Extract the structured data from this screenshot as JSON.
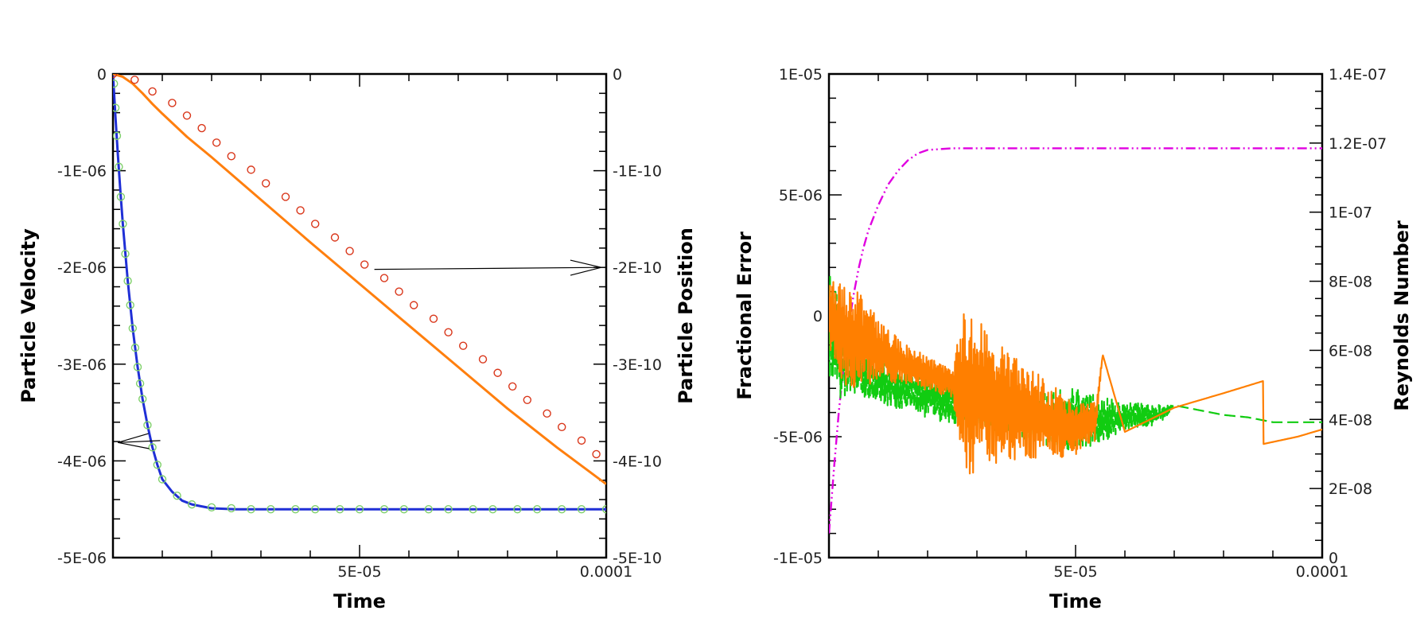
{
  "colors": {
    "velocity_line": "#1f2fd6",
    "velocity_markers": "#7fd06b",
    "position_line": "#ff7f0e",
    "position_markers": "#d9361a",
    "error_green": "#11cc11",
    "error_orange": "#ff7f00",
    "reynolds_line": "#e000e0",
    "axis": "#000000",
    "annotation_arrow": "#000000"
  },
  "chart_data": [
    {
      "type": "line",
      "xlabel": "Time",
      "ylabel": "Particle Velocity",
      "y2label": "Particle Position",
      "xlim": [
        0,
        0.0001
      ],
      "ylim": [
        -5e-06,
        0
      ],
      "y2lim": [
        -5e-10,
        0
      ],
      "x_tick_labels": [
        {
          "v": 5e-05,
          "label": "5E-05"
        },
        {
          "v": 0.0001,
          "label": "0.0001"
        }
      ],
      "y_tick_labels": [
        {
          "v": 0,
          "label": "0"
        },
        {
          "v": -1e-06,
          "label": "-1E-06"
        },
        {
          "v": -2e-06,
          "label": "-2E-06"
        },
        {
          "v": -3e-06,
          "label": "-3E-06"
        },
        {
          "v": -4e-06,
          "label": "-4E-06"
        },
        {
          "v": -5e-06,
          "label": "-5E-06"
        }
      ],
      "y2_tick_labels": [
        {
          "v": 0,
          "label": "0"
        },
        {
          "v": -1e-10,
          "label": "-1E-10"
        },
        {
          "v": -2e-10,
          "label": "-2E-10"
        },
        {
          "v": -3e-10,
          "label": "-3E-10"
        },
        {
          "v": -4e-10,
          "label": "-4E-10"
        },
        {
          "v": -5e-10,
          "label": "-5E-10"
        }
      ],
      "grid": false,
      "series": [
        {
          "axis": "left",
          "style": "solid",
          "color": "#1f2fd6",
          "x": [
            0,
            5e-07,
            1e-06,
            1.5e-06,
            2e-06,
            3e-06,
            4e-06,
            5e-06,
            6e-06,
            7e-06,
            8e-06,
            9e-06,
            1e-05,
            1.2e-05,
            1.4e-05,
            1.6e-05,
            1.8e-05,
            2e-05,
            2.5e-05,
            3e-05,
            3.5e-05,
            4e-05,
            5e-05,
            6e-05,
            7e-05,
            8e-05,
            9e-05,
            0.0001
          ],
          "y": [
            0,
            -4.4e-07,
            -8.4e-07,
            -1.21e-06,
            -1.55e-06,
            -2.14e-06,
            -2.63e-06,
            -3.03e-06,
            -3.36e-06,
            -3.63e-06,
            -3.86e-06,
            -4.04e-06,
            -4.19e-06,
            -4.32e-06,
            -4.41e-06,
            -4.45e-06,
            -4.47e-06,
            -4.49e-06,
            -4.5e-06,
            -4.5e-06,
            -4.5e-06,
            -4.5e-06,
            -4.5e-06,
            -4.5e-06,
            -4.5e-06,
            -4.5e-06,
            -4.5e-06,
            -4.5e-06
          ]
        },
        {
          "axis": "left",
          "style": "markers",
          "marker": "circle",
          "color": "#7fd06b",
          "x": [
            2e-07,
            5e-07,
            8e-07,
            1.2e-06,
            1.6e-06,
            2e-06,
            2.5e-06,
            3e-06,
            3.5e-06,
            4e-06,
            4.5e-06,
            5e-06,
            5.5e-06,
            6e-06,
            7e-06,
            8e-06,
            9e-06,
            1e-05,
            1.3e-05,
            1.6e-05,
            2e-05,
            2.4e-05,
            2.8e-05,
            3.2e-05,
            3.7e-05,
            4.1e-05,
            4.6e-05,
            5e-05,
            5.5e-05,
            5.9e-05,
            6.4e-05,
            6.8e-05,
            7.3e-05,
            7.7e-05,
            8.2e-05,
            8.6e-05,
            9.1e-05,
            9.5e-05,
            0.0001
          ],
          "y": [
            -1e-07,
            -3.5e-07,
            -6.4e-07,
            -9.6e-07,
            -1.27e-06,
            -1.55e-06,
            -1.86e-06,
            -2.14e-06,
            -2.39e-06,
            -2.63e-06,
            -2.83e-06,
            -3.03e-06,
            -3.2e-06,
            -3.36e-06,
            -3.63e-06,
            -3.86e-06,
            -4.04e-06,
            -4.19e-06,
            -4.36e-06,
            -4.45e-06,
            -4.48e-06,
            -4.49e-06,
            -4.5e-06,
            -4.5e-06,
            -4.5e-06,
            -4.5e-06,
            -4.5e-06,
            -4.5e-06,
            -4.5e-06,
            -4.5e-06,
            -4.5e-06,
            -4.5e-06,
            -4.5e-06,
            -4.5e-06,
            -4.5e-06,
            -4.5e-06,
            -4.5e-06,
            -4.5e-06,
            -4.5e-06
          ]
        },
        {
          "axis": "right",
          "style": "solid",
          "color": "#ff7f0e",
          "x": [
            0,
            2e-06,
            4e-06,
            6e-06,
            8e-06,
            1e-05,
            1.5e-05,
            2e-05,
            3e-05,
            4e-05,
            5e-05,
            6e-05,
            7e-05,
            8e-05,
            9e-05,
            0.0001
          ],
          "y": [
            0,
            -3e-12,
            -1e-11,
            -2e-11,
            -3.1e-11,
            -4.1e-11,
            -6.5e-11,
            -8.6e-11,
            -1.3e-10,
            -1.74e-10,
            -2.17e-10,
            -2.6e-10,
            -3.03e-10,
            -3.46e-10,
            -3.86e-10,
            -4.24e-10
          ]
        },
        {
          "axis": "right",
          "style": "markers",
          "marker": "circle",
          "color": "#d9361a",
          "x": [
            0,
            4.4e-06,
            8e-06,
            1.2e-05,
            1.5e-05,
            1.8e-05,
            2.1e-05,
            2.4e-05,
            2.8e-05,
            3.1e-05,
            3.5e-05,
            3.8e-05,
            4.1e-05,
            4.5e-05,
            4.8e-05,
            5.1e-05,
            5.5e-05,
            5.8e-05,
            6.1e-05,
            6.5e-05,
            6.8e-05,
            7.1e-05,
            7.5e-05,
            7.8e-05,
            8.1e-05,
            8.4e-05,
            8.8e-05,
            9.1e-05,
            9.5e-05,
            9.8e-05
          ],
          "y": [
            0,
            -6e-12,
            -1.8e-11,
            -3e-11,
            -4.3e-11,
            -5.6e-11,
            -7.1e-11,
            -8.5e-11,
            -9.9e-11,
            -1.13e-10,
            -1.27e-10,
            -1.41e-10,
            -1.55e-10,
            -1.69e-10,
            -1.83e-10,
            -1.97e-10,
            -2.11e-10,
            -2.25e-10,
            -2.39e-10,
            -2.53e-10,
            -2.67e-10,
            -2.81e-10,
            -2.95e-10,
            -3.09e-10,
            -3.23e-10,
            -3.37e-10,
            -3.51e-10,
            -3.65e-10,
            -3.79e-10,
            -3.93e-10
          ]
        }
      ],
      "annotations": [
        {
          "type": "arrow",
          "axis": "right",
          "from": [
            5.3e-05,
            -2.02e-10
          ],
          "to": [
            9.9e-05,
            -2e-10
          ]
        },
        {
          "type": "arrow",
          "axis": "left",
          "from": [
            9.6e-06,
            -3.79e-06
          ],
          "to": [
            1e-06,
            -3.81e-06
          ]
        }
      ]
    },
    {
      "type": "line",
      "xlabel": "Time",
      "ylabel": "Fractional Error",
      "y2label": "Reynolds Number",
      "xlim": [
        0,
        0.0001
      ],
      "ylim": [
        -1e-05,
        1e-05
      ],
      "y2lim": [
        0,
        1.4e-07
      ],
      "x_tick_labels": [
        {
          "v": 5e-05,
          "label": "5E-05"
        },
        {
          "v": 0.0001,
          "label": "0.0001"
        }
      ],
      "y_tick_labels": [
        {
          "v": 1e-05,
          "label": "1E-05"
        },
        {
          "v": 5e-06,
          "label": "5E-06"
        },
        {
          "v": 0,
          "label": "0"
        },
        {
          "v": -5e-06,
          "label": "-5E-06"
        },
        {
          "v": -1e-05,
          "label": "-1E-05"
        }
      ],
      "y2_tick_labels": [
        {
          "v": 1.4e-07,
          "label": "1.4E-07"
        },
        {
          "v": 1.2e-07,
          "label": "1.2E-07"
        },
        {
          "v": 1e-07,
          "label": "1E-07"
        },
        {
          "v": 8e-08,
          "label": "8E-08"
        },
        {
          "v": 6e-08,
          "label": "6E-08"
        },
        {
          "v": 4e-08,
          "label": "4E-08"
        },
        {
          "v": 2e-08,
          "label": "2E-08"
        },
        {
          "v": 0,
          "label": "0"
        }
      ],
      "grid": false,
      "series": [
        {
          "axis": "right",
          "style": "dashdotdot",
          "color": "#e000e0",
          "x": [
            0,
            1e-06,
            2e-06,
            3e-06,
            4e-06,
            5e-06,
            6e-06,
            7e-06,
            8e-06,
            1e-05,
            1.2e-05,
            1.4e-05,
            1.6e-05,
            1.8e-05,
            2e-05,
            2.5e-05,
            3e-05,
            4e-05,
            5e-05,
            6e-05,
            8e-05,
            0.0001
          ],
          "y": [
            7e-09,
            2.55e-08,
            4.22e-08,
            5.58e-08,
            6.7e-08,
            7.61e-08,
            8.36e-08,
            8.97e-08,
            9.47e-08,
            1.02e-07,
            1.08e-07,
            1.12e-07,
            1.15e-07,
            1.17e-07,
            1.18e-07,
            1.185e-07,
            1.185e-07,
            1.185e-07,
            1.185e-07,
            1.185e-07,
            1.185e-07,
            1.185e-07
          ]
        },
        {
          "axis": "left",
          "style": "dashed-noisy",
          "color": "#11cc11",
          "x": [
            0,
            2e-06,
            4e-06,
            6e-06,
            8e-06,
            1e-05,
            1.5e-05,
            2e-05,
            2.5e-05,
            3e-05,
            3.5e-05,
            4e-05,
            4.5e-05,
            5e-05,
            5.5e-05,
            6e-05,
            6.5e-05,
            6.8e-05,
            7e-05,
            7.5e-05,
            8e-05,
            8.5e-05,
            9e-05,
            0.0001
          ],
          "y": [
            0,
            -1.5e-06,
            -2e-06,
            -2.3e-06,
            -2.5e-06,
            -2.7e-06,
            -3e-06,
            -3.3e-06,
            -3.5e-06,
            -3.7e-06,
            -3.9e-06,
            -4.1e-06,
            -4.2e-06,
            -4.3e-06,
            -4.3e-06,
            -4.2e-06,
            -4.1e-06,
            -4e-06,
            -3.7e-06,
            -3.9e-06,
            -4.1e-06,
            -4.2e-06,
            -4.4e-06,
            -4.4e-06
          ],
          "noise": [
            2.5e-06,
            2e-06,
            1.2e-06,
            9e-07,
            1e-06,
            1e-06,
            9e-07,
            1e-06,
            1e-06,
            1e-06,
            1e-06,
            1e-06,
            1.2e-06,
            1.4e-06,
            1e-06,
            6e-07,
            5e-07,
            3e-07,
            0,
            0,
            0,
            0,
            0,
            0
          ]
        },
        {
          "axis": "left",
          "style": "solid-noisy",
          "color": "#ff7f00",
          "x": [
            0,
            2e-06,
            4e-06,
            6e-06,
            8e-06,
            1e-05,
            1.5e-05,
            2e-05,
            2.5e-05,
            2.8e-05,
            3e-05,
            3.5e-05,
            4e-05,
            4.5e-05,
            5e-05,
            5.4e-05,
            5.55e-05,
            6e-05,
            7e-05,
            8e-05,
            8.8e-05,
            8.81e-05,
            9.5e-05,
            0.0001
          ],
          "y": [
            0,
            -5e-07,
            -8e-07,
            -1e-06,
            -1.2e-06,
            -1.4e-06,
            -2e-06,
            -2.4e-06,
            -2.8e-06,
            -3.1e-06,
            -3.2e-06,
            -3.6e-06,
            -4e-06,
            -4.4e-06,
            -4.6e-06,
            -4.4e-06,
            -1.6e-06,
            -4.8e-06,
            -3.8e-06,
            -3.2e-06,
            -2.7e-06,
            -5.3e-06,
            -5e-06,
            -4.7e-06
          ],
          "noise": [
            1.5e-06,
            2e-06,
            2.2e-06,
            2e-06,
            1.8e-06,
            1.2e-06,
            9e-07,
            7e-07,
            6e-07,
            4e-06,
            3.2e-06,
            2.4e-06,
            2e-06,
            1.6e-06,
            1.2e-06,
            8e-07,
            0,
            0,
            0,
            0,
            0,
            0,
            0,
            0
          ]
        }
      ],
      "annotations": []
    }
  ]
}
